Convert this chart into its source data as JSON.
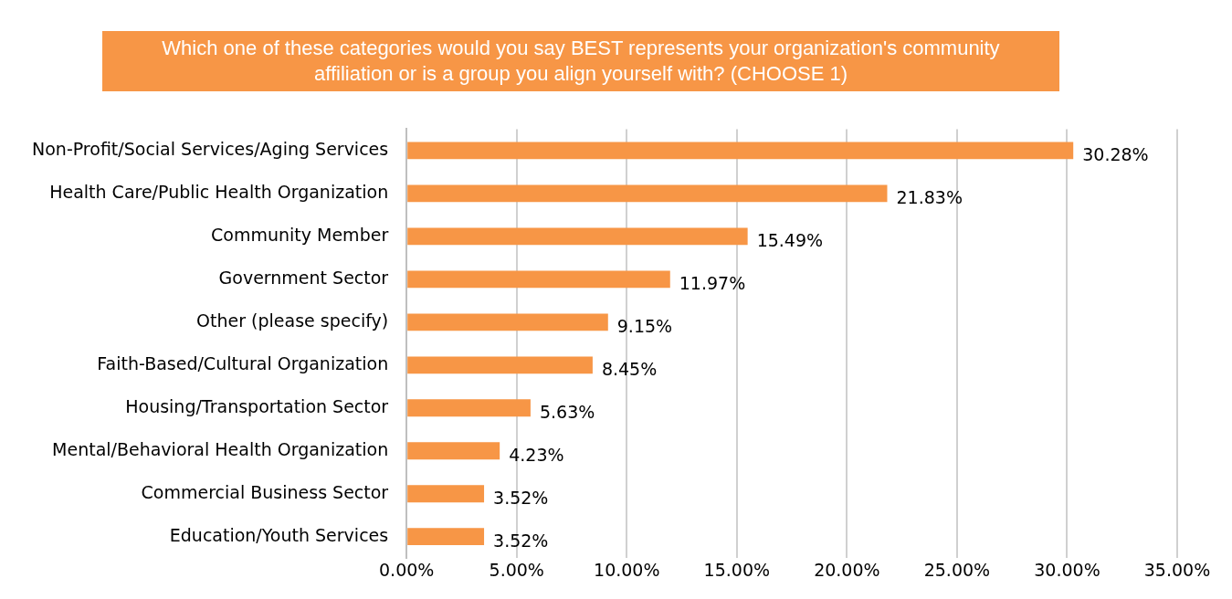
{
  "chart_data": {
    "type": "bar",
    "orientation": "horizontal",
    "title": "Which one of these categories would you say BEST represents your organization's community affiliation or is a group you align yourself with? (CHOOSE 1)",
    "categories": [
      "Non-Profit/Social Services/Aging Services",
      "Health Care/Public Health Organization",
      "Community Member",
      "Government Sector",
      "Other (please specify)",
      "Faith-Based/Cultural Organization",
      "Housing/Transportation Sector",
      "Mental/Behavioral Health Organization",
      "Commercial Business Sector",
      "Education/Youth Services"
    ],
    "values": [
      30.28,
      21.83,
      15.49,
      11.97,
      9.15,
      8.45,
      5.63,
      4.23,
      3.52,
      3.52
    ],
    "value_labels": [
      "30.28%",
      "21.83%",
      "15.49%",
      "11.97%",
      "9.15%",
      "8.45%",
      "5.63%",
      "4.23%",
      "3.52%",
      "3.52%"
    ],
    "color": "#f79646",
    "xlim": [
      0,
      35
    ],
    "xticks": [
      {
        "value": 0,
        "label": "0.00%"
      },
      {
        "value": 5,
        "label": "5.00%"
      },
      {
        "value": 10,
        "label": "10.00%"
      },
      {
        "value": 15,
        "label": "15.00%"
      },
      {
        "value": 20,
        "label": "20.00%"
      },
      {
        "value": 25,
        "label": "25.00%"
      },
      {
        "value": 30,
        "label": "30.00%"
      },
      {
        "value": 35,
        "label": "35.00%"
      }
    ],
    "grid": "x",
    "legend": false
  }
}
